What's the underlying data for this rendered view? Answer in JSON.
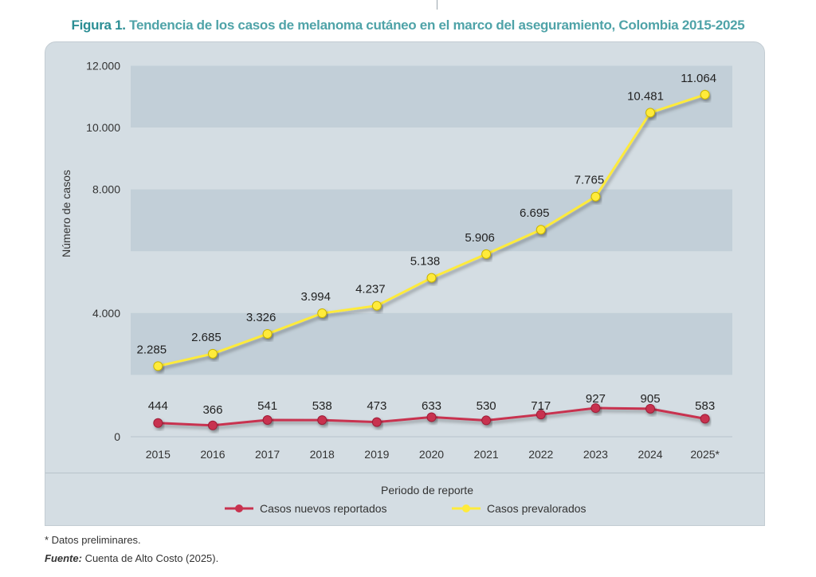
{
  "figure": {
    "label": "Figura 1.",
    "title": "Tendencia de los casos de melanoma cutáneo en el marco del aseguramiento, Colombia 2015-2025"
  },
  "chart_data": {
    "type": "line",
    "categories": [
      "2015",
      "2016",
      "2017",
      "2018",
      "2019",
      "2020",
      "2021",
      "2022",
      "2023",
      "2024",
      "2025*"
    ],
    "series": [
      {
        "name": "Casos nuevos reportados",
        "color": "#c8324f",
        "values": [
          444,
          366,
          541,
          538,
          473,
          633,
          530,
          717,
          927,
          905,
          583
        ],
        "labels": [
          "444",
          "366",
          "541",
          "538",
          "473",
          "633",
          "530",
          "717",
          "927",
          "905",
          "583"
        ]
      },
      {
        "name": "Casos prevalorados",
        "color": "#ffeb3b",
        "values": [
          2285,
          2685,
          3326,
          3994,
          4237,
          5138,
          5906,
          6695,
          7765,
          10481,
          11064
        ],
        "labels": [
          "2.285",
          "2.685",
          "3.326",
          "3.994",
          "4.237",
          "5.138",
          "5.906",
          "6.695",
          "7.765",
          "10.481",
          "11.064"
        ]
      }
    ],
    "y_ticks": [
      {
        "value": 0,
        "label": "0"
      },
      {
        "value": 4000,
        "label": "4.000"
      },
      {
        "value": 8000,
        "label": "8.000"
      },
      {
        "value": 10000,
        "label": "10.000"
      },
      {
        "value": 12000,
        "label": "12.000"
      }
    ],
    "ylim": [
      0,
      12000
    ],
    "ylabel": "Número de casos",
    "xlabel": "Periodo de reporte",
    "grid": true,
    "legend_position": "bottom"
  },
  "notes": {
    "preliminary": "* Datos preliminares.",
    "source_label": "Fuente:",
    "source_text": " Cuenta de Alto Costo (2025)."
  }
}
